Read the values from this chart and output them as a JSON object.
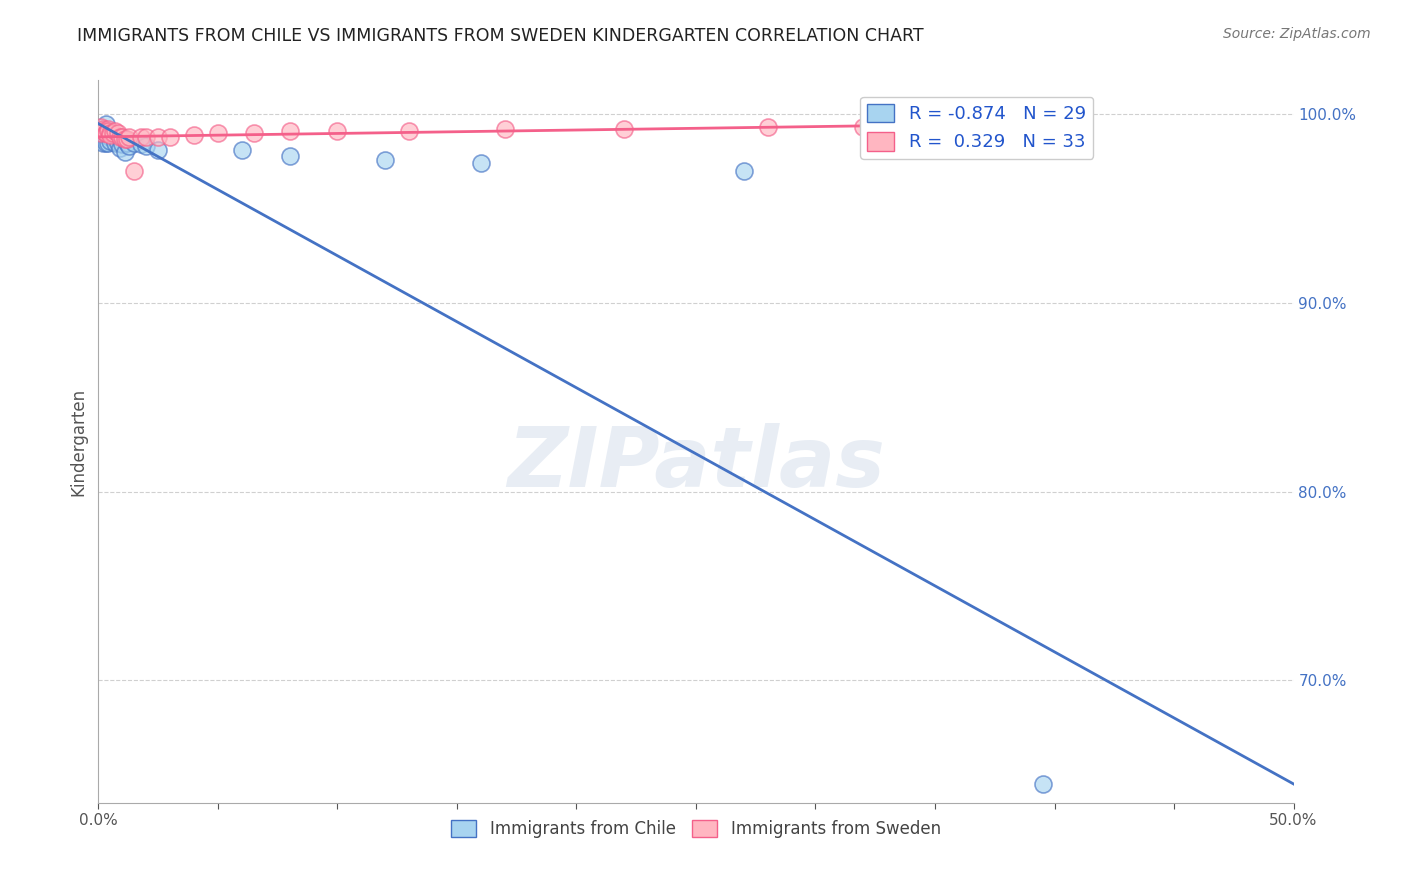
{
  "title": "IMMIGRANTS FROM CHILE VS IMMIGRANTS FROM SWEDEN KINDERGARTEN CORRELATION CHART",
  "source": "Source: ZipAtlas.com",
  "ylabel": "Kindergarten",
  "xlim": [
    0.0,
    0.5
  ],
  "ylim": [
    0.635,
    1.018
  ],
  "xticks": [
    0.0,
    0.05,
    0.1,
    0.15,
    0.2,
    0.25,
    0.3,
    0.35,
    0.4,
    0.45,
    0.5
  ],
  "xtick_labels": [
    "0.0%",
    "",
    "",
    "",
    "",
    "",
    "",
    "",
    "",
    "",
    "50.0%"
  ],
  "yticks_right": [
    0.7,
    0.8,
    0.9,
    1.0
  ],
  "ytick_labels_right": [
    "70.0%",
    "80.0%",
    "90.0%",
    "100.0%"
  ],
  "legend_bottom": [
    "Immigrants from Chile",
    "Immigrants from Sweden"
  ],
  "chile_R": -0.874,
  "chile_N": 29,
  "sweden_R": 0.329,
  "sweden_N": 33,
  "chile_scatter_color": "#a8d4f0",
  "sweden_scatter_color": "#ffb6c1",
  "chile_line_color": "#4472c4",
  "sweden_line_color": "#f4608a",
  "watermark": "ZIPatlas",
  "background_color": "#ffffff",
  "grid_color": "#d0d0d0",
  "chile_x": [
    0.001,
    0.002,
    0.002,
    0.003,
    0.003,
    0.003,
    0.004,
    0.004,
    0.005,
    0.005,
    0.006,
    0.006,
    0.007,
    0.008,
    0.009,
    0.01,
    0.011,
    0.012,
    0.013,
    0.015,
    0.018,
    0.02,
    0.025,
    0.06,
    0.08,
    0.12,
    0.16,
    0.27,
    0.395
  ],
  "chile_y": [
    0.99,
    0.99,
    0.985,
    0.99,
    0.985,
    0.995,
    0.99,
    0.985,
    0.988,
    0.986,
    0.988,
    0.99,
    0.985,
    0.985,
    0.982,
    0.984,
    0.98,
    0.985,
    0.983,
    0.985,
    0.984,
    0.983,
    0.981,
    0.981,
    0.978,
    0.976,
    0.974,
    0.97,
    0.645
  ],
  "sweden_x": [
    0.001,
    0.001,
    0.002,
    0.002,
    0.003,
    0.003,
    0.004,
    0.004,
    0.005,
    0.005,
    0.006,
    0.007,
    0.008,
    0.009,
    0.01,
    0.011,
    0.012,
    0.013,
    0.015,
    0.018,
    0.02,
    0.025,
    0.03,
    0.04,
    0.05,
    0.065,
    0.08,
    0.1,
    0.13,
    0.17,
    0.22,
    0.28,
    0.32
  ],
  "sweden_y": [
    0.993,
    0.99,
    0.992,
    0.991,
    0.99,
    0.99,
    0.992,
    0.991,
    0.99,
    0.989,
    0.99,
    0.991,
    0.99,
    0.988,
    0.988,
    0.987,
    0.987,
    0.988,
    0.97,
    0.988,
    0.988,
    0.988,
    0.988,
    0.989,
    0.99,
    0.99,
    0.991,
    0.991,
    0.991,
    0.992,
    0.992,
    0.993,
    0.993
  ]
}
